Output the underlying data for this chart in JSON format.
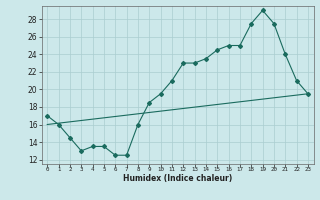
{
  "xlabel": "Humidex (Indice chaleur)",
  "xlim": [
    -0.5,
    23.5
  ],
  "ylim": [
    11.5,
    29.5
  ],
  "yticks": [
    12,
    14,
    16,
    18,
    20,
    22,
    24,
    26,
    28
  ],
  "xticks": [
    0,
    1,
    2,
    3,
    4,
    5,
    6,
    7,
    8,
    9,
    10,
    11,
    12,
    13,
    14,
    15,
    16,
    17,
    18,
    19,
    20,
    21,
    22,
    23
  ],
  "bg_color": "#cce8ea",
  "grid_color": "#aacdd0",
  "line_color": "#1a6b5e",
  "line1_x": [
    0,
    1,
    2,
    3,
    4,
    5,
    6,
    7,
    8,
    9,
    10,
    11,
    12,
    13,
    14,
    15,
    16,
    17,
    18,
    19,
    20,
    21,
    22,
    23
  ],
  "line1_y": [
    17,
    16,
    14.5,
    13,
    13.5,
    13.5,
    12.5,
    12.5,
    16,
    18.5,
    19.5,
    21,
    23,
    23,
    23.5,
    24.5,
    25,
    25,
    27.5,
    29,
    27.5,
    24,
    21,
    19.5
  ],
  "line2_x": [
    0,
    23
  ],
  "line2_y": [
    16.0,
    19.5
  ]
}
